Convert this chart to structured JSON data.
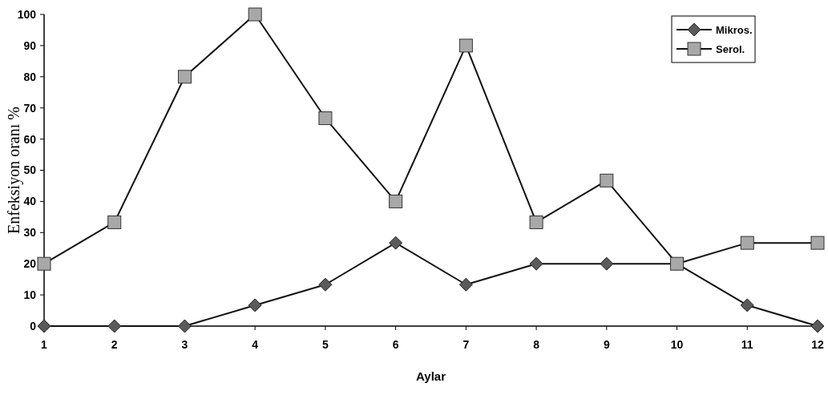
{
  "chart_data": {
    "type": "line",
    "xlabel": "Aylar",
    "ylabel": "Enfeksiyon oranı %",
    "x": [
      1,
      2,
      3,
      4,
      5,
      6,
      7,
      8,
      9,
      10,
      11,
      12
    ],
    "xlim": [
      1,
      12
    ],
    "xticks": [
      1,
      2,
      3,
      4,
      5,
      6,
      7,
      8,
      9,
      10,
      11,
      12
    ],
    "ylim": [
      0,
      100
    ],
    "yticks": [
      0,
      10,
      20,
      30,
      40,
      50,
      60,
      70,
      80,
      90,
      100
    ],
    "series": [
      {
        "name": "Mikros.",
        "color": "#5a5a5a",
        "marker": "diamond",
        "values": [
          0,
          0,
          0,
          6.7,
          13.3,
          26.7,
          13.3,
          20,
          20,
          20,
          6.7,
          0
        ]
      },
      {
        "name": "Serol.",
        "color": "#a8a8a8",
        "marker": "square",
        "values": [
          20,
          33.3,
          80,
          100,
          66.7,
          40,
          90,
          33.3,
          46.7,
          20,
          26.7,
          26.7
        ]
      }
    ],
    "grid": false,
    "legend": "top right",
    "line_style": "solid"
  }
}
